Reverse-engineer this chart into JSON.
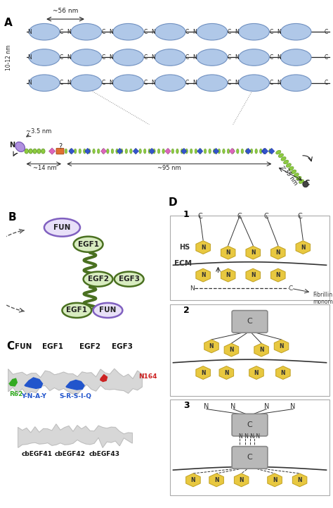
{
  "fig_width": 4.74,
  "fig_height": 7.21,
  "bg_color": "#ffffff",
  "panel_A": {
    "ellipse_color": "#b0c8e8",
    "ellipse_edge": "#7090c0",
    "line_color": "#222222",
    "label_56nm": "~56 nm",
    "label_10_12nm": "10-12 nm"
  },
  "panel_B": {
    "fun_fill": "#e8e0f8",
    "fun_edge": "#8060c0",
    "egf_fill": "#d8ecc0",
    "egf_edge": "#4a7020",
    "link_color": "#4a7020"
  },
  "panel_C": {
    "labels": [
      "FUN",
      "EGF1",
      "EGF2",
      "EGF3"
    ],
    "sub_labels": [
      "cbEGF41",
      "cbEGF42",
      "cbEGF43"
    ],
    "blue_label": "Y-N-A-Y",
    "blue_label2": "S-R-S-I-Q",
    "green_label": "R62",
    "red_label": "N164"
  },
  "panel_D": {
    "hex_color": "#e8c840",
    "hex_edge": "#c0a020",
    "box_color": "#b8b8b8",
    "box_edge": "#888888",
    "line_color": "#333333",
    "HS_label": "HS",
    "ECM_label": "ECM",
    "fibrillin_label": "Fibrillin\nmonomer"
  }
}
